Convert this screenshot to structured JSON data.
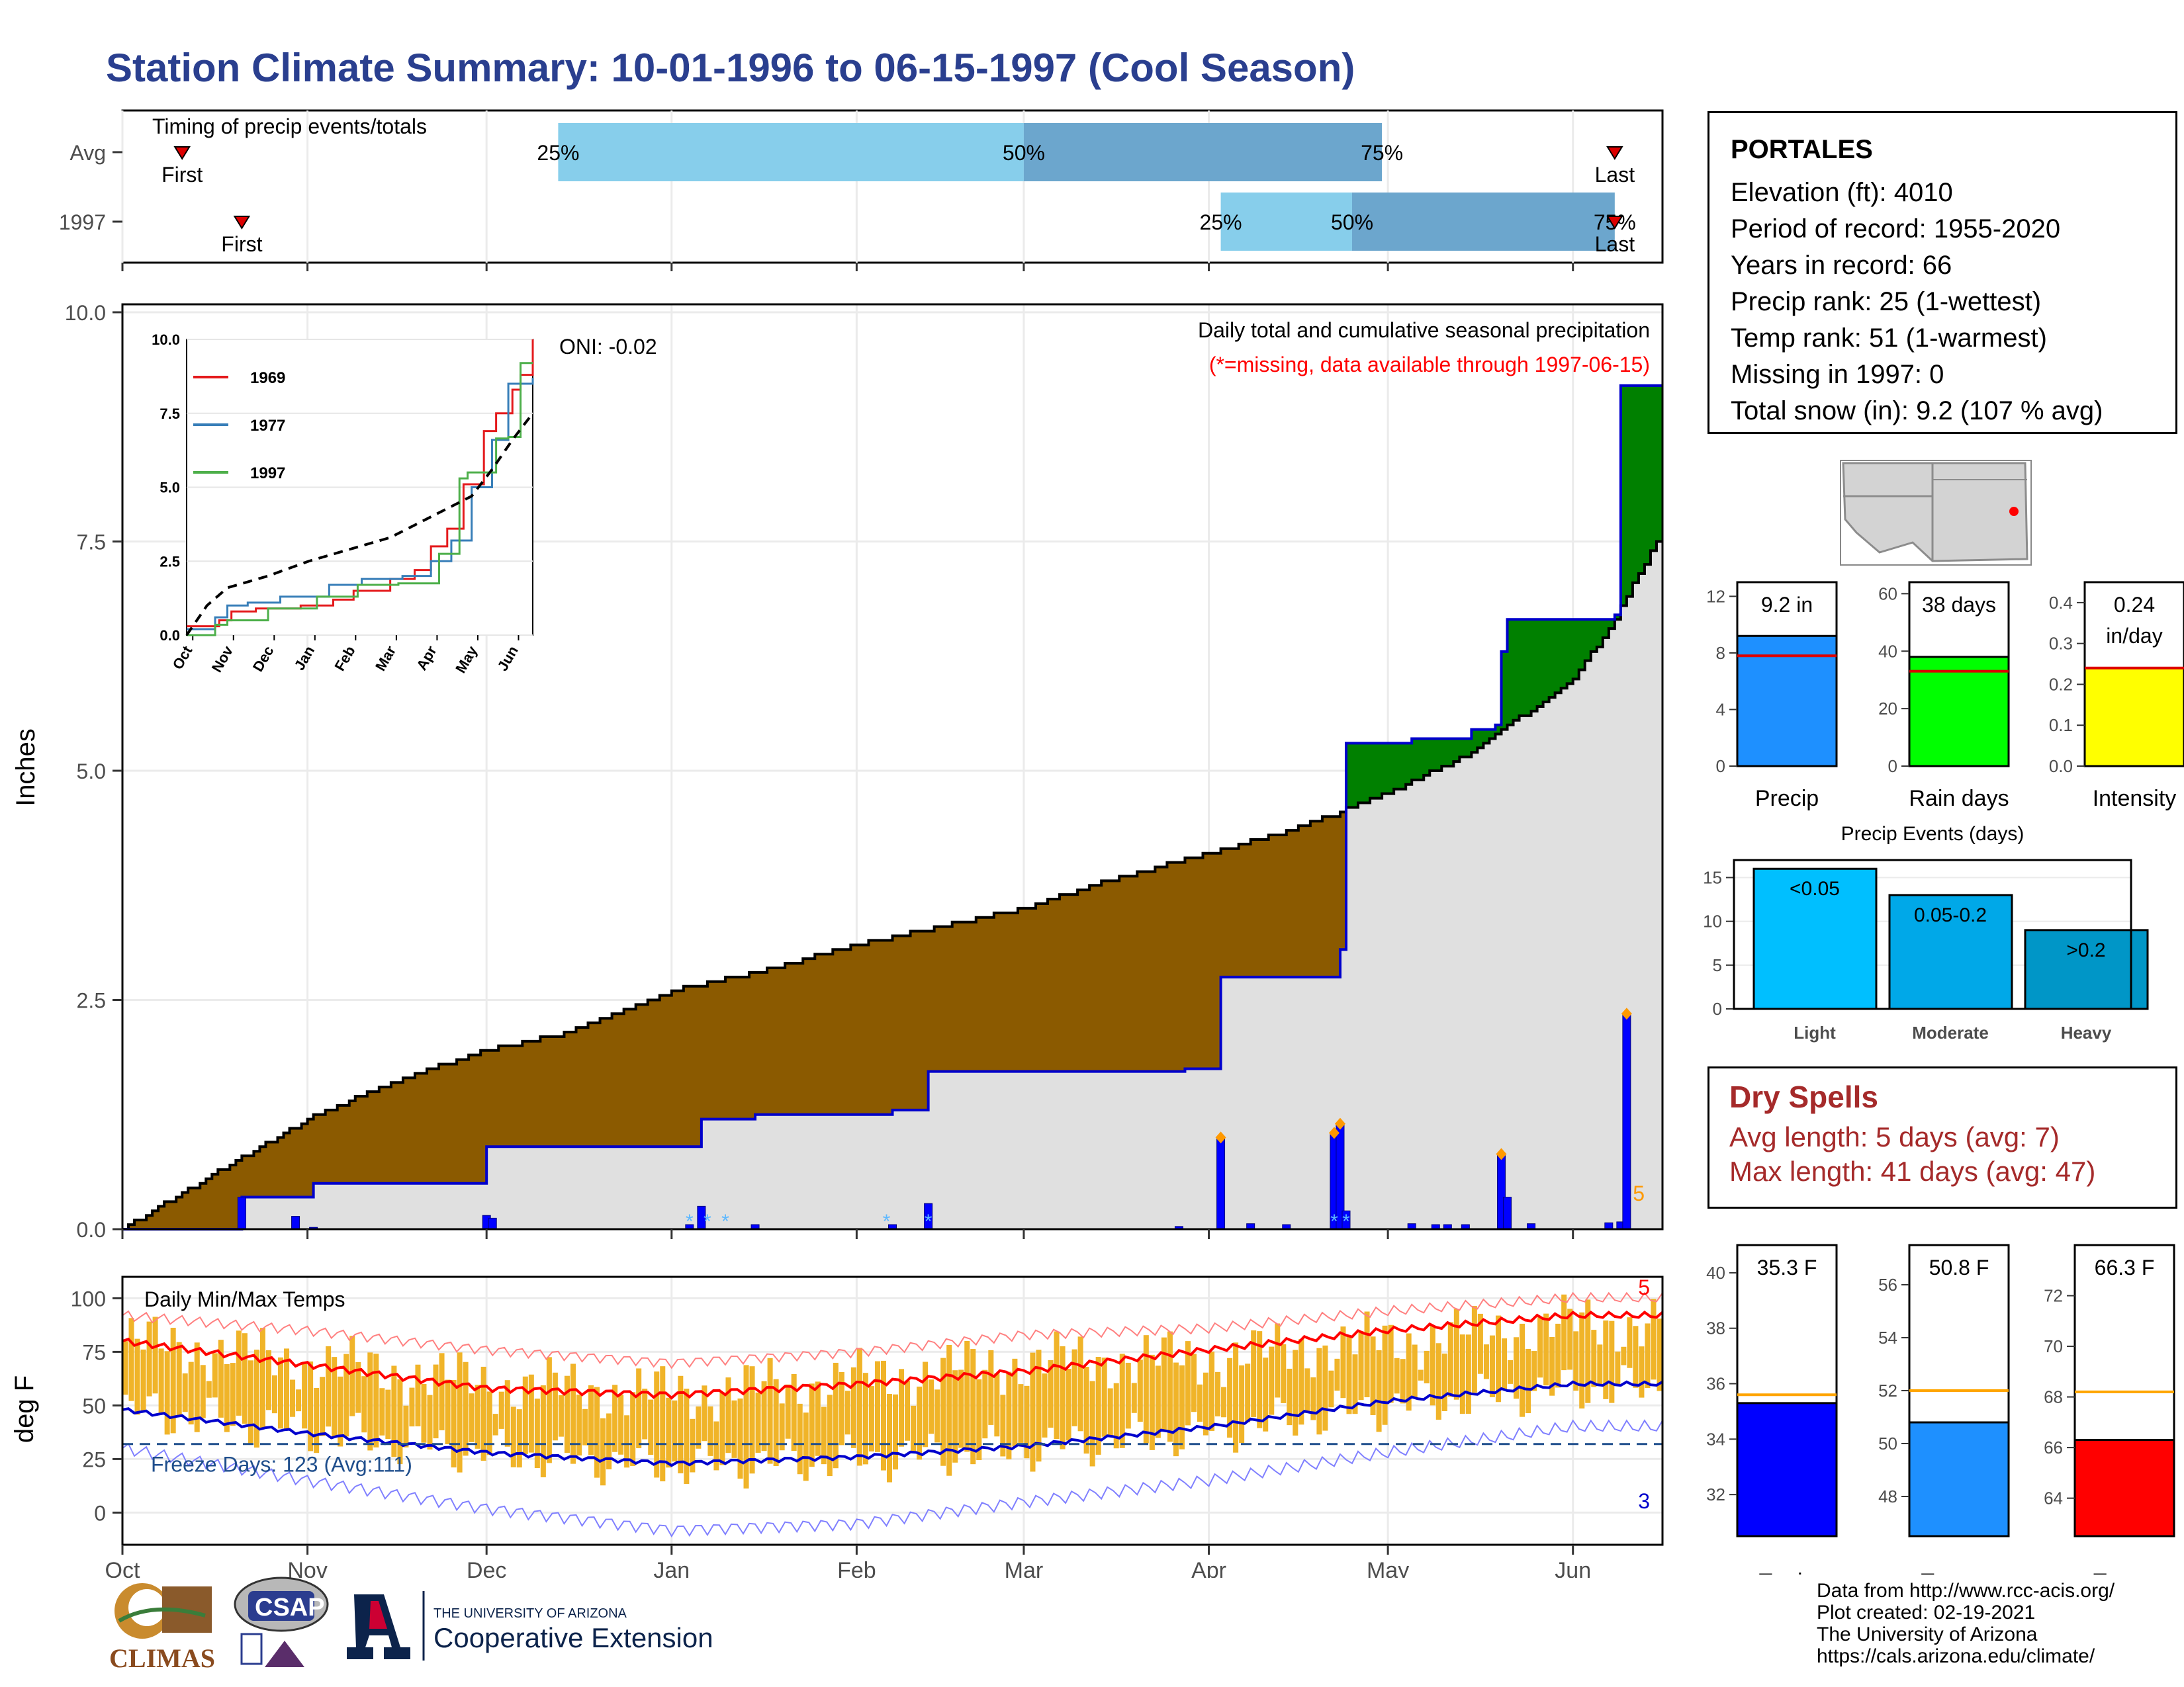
{
  "title": "Station Climate Summary: 10-01-1996 to 06-15-1997 (Cool Season)",
  "station": {
    "name": "PORTALES",
    "lines": [
      "Elevation (ft): 4010",
      "Period of record: 1955-2020",
      "Years in record: 66",
      "Precip rank: 25 (1-wettest)",
      "Temp rank: 51 (1-warmest)",
      "Missing in 1997: 0",
      "Total snow (in): 9.2 (107 % avg)"
    ]
  },
  "dry_spells": {
    "heading": "Dry Spells",
    "avg_length": "Avg length: 5 days (avg: 7)",
    "max_length": "Max length: 41 days (avg: 47)"
  },
  "credits": [
    "Data from http://www.rcc-acis.org/",
    "Plot created: 02-19-2021",
    "The University of Arizona",
    "https://cals.arizona.edu/climate/"
  ],
  "logos": {
    "climas": "CLIMAS",
    "csap": "CSAP",
    "ua_line1": "THE UNIVERSITY OF ARIZONA",
    "ua_line2": "Cooperative Extension"
  },
  "colors": {
    "title": "#2a3f8f",
    "above_avg_fill": "#008000",
    "below_avg_fill": "#8b5a00",
    "avg_fill": "#e0e0e0",
    "cum_line": "#0000cc",
    "timing_light": "#87ceeb",
    "timing_dark": "#6ca6cd",
    "temp_bar": "#f0b429",
    "tmax_line": "#ff0000",
    "tmin_line": "#0000cc",
    "dry_spell_text": "#a52a2a",
    "precip_bar": "#1e90ff",
    "raindays_bar": "#00ff00",
    "intensity_bar": "#ffff00",
    "tmin_bar": "#0000ff",
    "tmean_bar": "#1e90ff",
    "tmax_bar": "#ff0000",
    "light_bar": "#00bfff",
    "moderate_bar": "#00a8e8",
    "heavy_bar": "#0096c7"
  },
  "chart_data": [
    {
      "type": "timeline",
      "title": "Timing of precip events/totals",
      "rows": [
        "Avg",
        "1997"
      ],
      "quartile_labels": [
        "25%",
        "50%",
        "75%"
      ],
      "first_label": "First",
      "last_label": "Last",
      "avg": {
        "first": "1996-10-11",
        "q25": "1996-12-13",
        "q50": "1997-03-01",
        "q75": "1997-04-30",
        "last": "1997-06-08"
      },
      "y1997": {
        "first": "1996-10-21",
        "q25": "1997-04-03",
        "q50": "1997-04-25",
        "q75": "1997-06-08",
        "last": "1997-06-08"
      }
    },
    {
      "type": "area",
      "title": "Daily total and cumulative seasonal precipitation",
      "subtitle": "(*=missing, data available through 1997-06-15)",
      "oni": "ONI: -0.02",
      "ylabel": "Inches",
      "ylim": [
        0,
        10
      ],
      "yticks": [
        "0.0",
        "2.5",
        "5.0",
        "7.5",
        "10.0"
      ],
      "corner_count": "5",
      "cumulative_1997": [
        [
          "1996-10-01",
          0
        ],
        [
          "1996-10-20",
          0
        ],
        [
          "1996-10-21",
          0.35
        ],
        [
          "1996-11-01",
          0.35
        ],
        [
          "1996-11-02",
          0.5
        ],
        [
          "1996-11-30",
          0.5
        ],
        [
          "1996-12-01",
          0.9
        ],
        [
          "1997-01-05",
          0.9
        ],
        [
          "1997-01-06",
          1.2
        ],
        [
          "1997-01-14",
          1.2
        ],
        [
          "1997-01-15",
          1.25
        ],
        [
          "1997-02-06",
          1.25
        ],
        [
          "1997-02-07",
          1.3
        ],
        [
          "1997-02-12",
          1.3
        ],
        [
          "1997-02-13",
          1.72
        ],
        [
          "1997-03-26",
          1.72
        ],
        [
          "1997-03-28",
          1.75
        ],
        [
          "1997-04-02",
          1.75
        ],
        [
          "1997-04-03",
          2.75
        ],
        [
          "1997-04-21",
          2.75
        ],
        [
          "1997-04-23",
          3.05
        ],
        [
          "1997-04-24",
          5.3
        ],
        [
          "1997-05-05",
          5.35
        ],
        [
          "1997-05-15",
          5.45
        ],
        [
          "1997-05-19",
          5.5
        ],
        [
          "1997-05-20",
          6.3
        ],
        [
          "1997-05-21",
          6.65
        ],
        [
          "1997-06-01",
          6.65
        ],
        [
          "1997-06-08",
          6.7
        ],
        [
          "1997-06-09",
          9.2
        ],
        [
          "1997-06-15",
          9.2
        ]
      ],
      "average_cumulative": [
        [
          "1996-10-01",
          0
        ],
        [
          "1996-10-15",
          0.55
        ],
        [
          "1996-11-01",
          1.2
        ],
        [
          "1996-11-15",
          1.6
        ],
        [
          "1996-12-01",
          1.95
        ],
        [
          "1996-12-15",
          2.15
        ],
        [
          "1997-01-01",
          2.6
        ],
        [
          "1997-01-15",
          2.8
        ],
        [
          "1997-02-01",
          3.1
        ],
        [
          "1997-02-15",
          3.3
        ],
        [
          "1997-03-01",
          3.5
        ],
        [
          "1997-03-15",
          3.8
        ],
        [
          "1997-04-01",
          4.1
        ],
        [
          "1997-04-15",
          4.35
        ],
        [
          "1997-05-01",
          4.75
        ],
        [
          "1997-05-15",
          5.2
        ],
        [
          "1997-06-01",
          6.0
        ],
        [
          "1997-06-07",
          6.55
        ],
        [
          "1997-06-15",
          7.5
        ]
      ],
      "daily_precip": [
        [
          "1996-10-21",
          0.35
        ],
        [
          "1996-10-30",
          0.14
        ],
        [
          "1996-11-02",
          0.02
        ],
        [
          "1996-12-01",
          0.15
        ],
        [
          "1996-12-02",
          0.12
        ],
        [
          "1997-01-04",
          0.05
        ],
        [
          "1997-01-06",
          0.25
        ],
        [
          "1997-01-15",
          0.05
        ],
        [
          "1997-02-07",
          0.05
        ],
        [
          "1997-02-13",
          0.28
        ],
        [
          "1997-03-27",
          0.03
        ],
        [
          "1997-04-03",
          1.0
        ],
        [
          "1997-04-08",
          0.06
        ],
        [
          "1997-04-14",
          0.05
        ],
        [
          "1997-04-22",
          1.05
        ],
        [
          "1997-04-23",
          1.15
        ],
        [
          "1997-04-24",
          0.2
        ],
        [
          "1997-05-05",
          0.06
        ],
        [
          "1997-05-09",
          0.05
        ],
        [
          "1997-05-11",
          0.05
        ],
        [
          "1997-05-14",
          0.05
        ],
        [
          "1997-05-20",
          0.82
        ],
        [
          "1997-05-21",
          0.35
        ],
        [
          "1997-05-25",
          0.06
        ],
        [
          "1997-06-07",
          0.07
        ],
        [
          "1997-06-09",
          0.08
        ],
        [
          "1997-06-10",
          2.35
        ]
      ],
      "snow_days": [
        "1997-01-04",
        "1997-01-07",
        "1997-01-10",
        "1997-02-06",
        "1997-02-13",
        "1997-04-22",
        "1997-04-24"
      ],
      "record_markers": [
        "1997-04-03",
        "1997-04-22",
        "1997-04-23",
        "1997-05-20",
        "1997-06-10"
      ],
      "inset": {
        "type": "line",
        "ylim": [
          0,
          10
        ],
        "yticks": [
          "0.0",
          "2.5",
          "5.0",
          "7.5",
          "10.0"
        ],
        "months": [
          "Oct",
          "Nov",
          "Dec",
          "Jan",
          "Feb",
          "Mar",
          "Apr",
          "May",
          "Jun"
        ],
        "series": [
          {
            "name": "1969",
            "color": "#e41a1c",
            "x": [
              0,
              0.8,
              1.1,
              1.7,
              2.8,
              3.6,
              4.1,
              5.0,
              5.6,
              6.0,
              6.4,
              6.8,
              7.3,
              7.6,
              8.0,
              8.2,
              8.5
            ],
            "y": [
              0.3,
              0.5,
              0.8,
              0.9,
              1.0,
              1.2,
              1.5,
              1.9,
              2.2,
              3.0,
              3.6,
              5.1,
              6.9,
              7.5,
              8.3,
              8.8,
              10.0
            ]
          },
          {
            "name": "1977",
            "color": "#377eb8",
            "x": [
              0,
              0.7,
              1.0,
              1.5,
              2.3,
              3.5,
              4.3,
              5.3,
              6.0,
              6.5,
              7.0,
              7.5,
              7.9,
              8.5
            ],
            "y": [
              0.2,
              0.6,
              1.0,
              1.1,
              1.3,
              1.7,
              1.9,
              2.0,
              2.5,
              3.2,
              5.0,
              6.6,
              8.5,
              8.7
            ]
          },
          {
            "name": "1997",
            "color": "#4daf4a",
            "x": [
              0,
              0.7,
              1.0,
              2.0,
              3.2,
              4.2,
              5.2,
              6.2,
              6.7,
              6.9,
              7.6,
              7.9,
              8.2,
              8.5
            ],
            "y": [
              0,
              0.35,
              0.5,
              0.9,
              1.3,
              1.7,
              1.75,
              2.75,
              5.3,
              5.5,
              6.65,
              6.7,
              9.2,
              9.2
            ]
          }
        ],
        "average": {
          "x": [
            0,
            0.5,
            1.0,
            2.0,
            3.0,
            4.0,
            5.0,
            6.0,
            7.0,
            7.5,
            8.0,
            8.5
          ],
          "y": [
            0,
            1.0,
            1.6,
            2.0,
            2.5,
            2.9,
            3.3,
            4.0,
            4.7,
            5.6,
            6.6,
            7.5
          ]
        }
      }
    },
    {
      "type": "bar",
      "title": "Daily Min/Max Temps",
      "ylabel": "deg F",
      "ylim": [
        -15,
        110
      ],
      "yticks": [
        "0",
        "25",
        "50",
        "75",
        "100"
      ],
      "months": [
        "Oct",
        "Nov",
        "Dec",
        "Jan",
        "Feb",
        "Mar",
        "Apr",
        "May",
        "Jun"
      ],
      "freeze_days": "Freeze Days: 123 (Avg:111)",
      "freeze_line": 32,
      "top_count": "5",
      "bottom_count": "3",
      "monthly_tmax": [
        80,
        70,
        60,
        55,
        62,
        70,
        72,
        80,
        88
      ],
      "monthly_tmin": [
        48,
        38,
        28,
        22,
        25,
        30,
        38,
        50,
        58
      ],
      "record_high": [
        92,
        85,
        76,
        70,
        75,
        83,
        86,
        94,
        100
      ],
      "record_low": [
        30,
        15,
        2,
        -8,
        -5,
        5,
        15,
        28,
        40
      ],
      "avg_tmax": [
        80,
        69,
        58,
        55,
        60,
        66,
        76,
        85,
        92
      ],
      "avg_tmin": [
        48,
        37,
        28,
        23,
        26,
        31,
        40,
        52,
        60
      ]
    },
    {
      "type": "bar",
      "title": "Precip",
      "value_label": "9.2 in",
      "value": 9.2,
      "avg": 7.8,
      "ylim": [
        0,
        13
      ],
      "yticks": [
        "0",
        "4",
        "8",
        "12"
      ]
    },
    {
      "type": "bar",
      "title": "Rain days",
      "value_label": "38 days",
      "value": 38,
      "avg": 33,
      "ylim": [
        0,
        64
      ],
      "yticks": [
        "0",
        "20",
        "40",
        "60"
      ]
    },
    {
      "type": "bar",
      "title": "Intensity",
      "value_label": "0.24",
      "value_unit": "in/day",
      "value": 0.24,
      "avg": 0.24,
      "ylim": [
        0,
        0.45
      ],
      "yticks": [
        "0.0",
        "0.1",
        "0.2",
        "0.3",
        "0.4"
      ]
    },
    {
      "type": "bar",
      "title": "Precip Events (days)",
      "categories": [
        "Light",
        "Moderate",
        "Heavy"
      ],
      "bar_labels": [
        "<0.05",
        "0.05-0.2",
        ">0.2"
      ],
      "values": [
        16,
        13,
        9
      ],
      "ylim": [
        0,
        17
      ],
      "yticks": [
        "0",
        "5",
        "10",
        "15"
      ]
    },
    {
      "type": "bar",
      "title": "T-min",
      "value_label": "35.3 F",
      "value": 35.3,
      "avg": 35.6,
      "ylim": [
        30.5,
        41
      ],
      "yticks": [
        "32",
        "34",
        "36",
        "38",
        "40"
      ]
    },
    {
      "type": "bar",
      "title": "T-mean",
      "value_label": "50.8 F",
      "value": 50.8,
      "avg": 52.0,
      "ylim": [
        46.5,
        57.5
      ],
      "yticks": [
        "48",
        "50",
        "52",
        "54",
        "56"
      ]
    },
    {
      "type": "bar",
      "title": "T-max",
      "value_label": "66.3 F",
      "value": 66.3,
      "avg": 68.2,
      "ylim": [
        62.5,
        74
      ],
      "yticks": [
        "64",
        "66",
        "68",
        "70",
        "72"
      ]
    }
  ]
}
